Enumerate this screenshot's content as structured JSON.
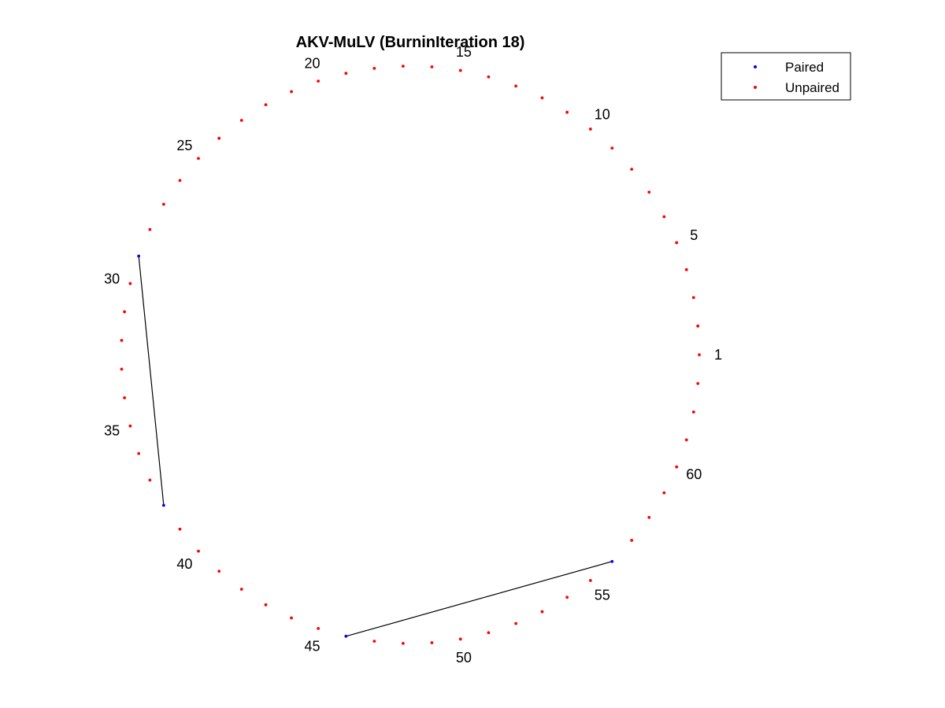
{
  "chart_data": {
    "type": "scatter",
    "layout": "circular-arc-diagram",
    "title": "AKV-MuLV (BurninIteration 18)",
    "n_positions": 63,
    "tick_labels": [
      "1",
      "5",
      "10",
      "15",
      "20",
      "25",
      "30",
      "35",
      "40",
      "45",
      "50",
      "55",
      "60"
    ],
    "tick_positions": [
      1,
      5,
      10,
      15,
      20,
      25,
      30,
      35,
      40,
      45,
      50,
      55,
      60
    ],
    "series": [
      {
        "name": "Paired",
        "color": "#0000ff",
        "positions": [
          29,
          38,
          46,
          56
        ]
      },
      {
        "name": "Unpaired",
        "color": "#ff0000",
        "positions": [
          1,
          2,
          3,
          4,
          5,
          6,
          7,
          8,
          9,
          10,
          11,
          12,
          13,
          14,
          15,
          16,
          17,
          18,
          19,
          20,
          21,
          22,
          23,
          24,
          25,
          26,
          27,
          28,
          30,
          31,
          32,
          33,
          34,
          35,
          36,
          37,
          39,
          40,
          41,
          42,
          43,
          44,
          45,
          47,
          48,
          49,
          50,
          51,
          52,
          53,
          54,
          55,
          57,
          58,
          59,
          60,
          61,
          62,
          63
        ]
      }
    ],
    "pairs": [
      [
        29,
        38
      ],
      [
        46,
        56
      ]
    ],
    "pair_color": "#000000",
    "legend_position": "top-right",
    "grid": false,
    "axes_visible": false
  }
}
